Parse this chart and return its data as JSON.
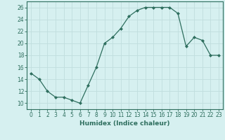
{
  "x": [
    0,
    1,
    2,
    3,
    4,
    5,
    6,
    7,
    8,
    9,
    10,
    11,
    12,
    13,
    14,
    15,
    16,
    17,
    18,
    19,
    20,
    21,
    22,
    23
  ],
  "y": [
    15,
    14,
    12,
    11,
    11,
    10.5,
    10,
    13,
    16,
    20,
    21,
    22.5,
    24.5,
    25.5,
    26,
    26,
    26,
    26,
    25,
    19.5,
    21,
    20.5,
    18,
    18
  ],
  "line_color": "#2e6e5e",
  "marker": "D",
  "marker_size": 2,
  "bg_color": "#d6f0f0",
  "grid_color": "#c0dede",
  "xlabel": "Humidex (Indice chaleur)",
  "xlim": [
    -0.5,
    23.5
  ],
  "ylim": [
    9,
    27
  ],
  "yticks": [
    10,
    12,
    14,
    16,
    18,
    20,
    22,
    24,
    26
  ],
  "xticks": [
    0,
    1,
    2,
    3,
    4,
    5,
    6,
    7,
    8,
    9,
    10,
    11,
    12,
    13,
    14,
    15,
    16,
    17,
    18,
    19,
    20,
    21,
    22,
    23
  ],
  "label_fontsize": 6.5,
  "tick_fontsize": 5.5
}
